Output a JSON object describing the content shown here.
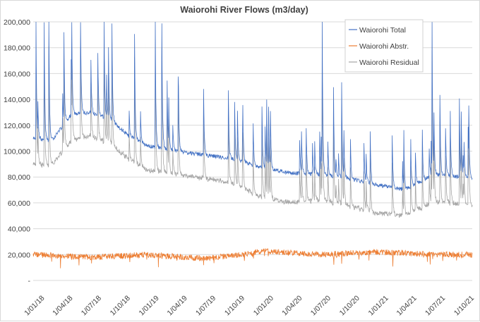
{
  "chart_data": {
    "type": "line",
    "title": "Waiorohi River Flows (m3/day)",
    "xlabel": "",
    "ylabel": "",
    "ylim": [
      0,
      200000
    ],
    "yticks": [
      "-",
      "20,000",
      "40,000",
      "60,000",
      "80,000",
      "100,000",
      "120,000",
      "140,000",
      "160,000",
      "180,000",
      "200,000"
    ],
    "ytick_values": [
      0,
      20000,
      40000,
      60000,
      80000,
      100000,
      120000,
      140000,
      160000,
      180000,
      200000
    ],
    "xticks": [
      "1/01/18",
      "1/04/18",
      "1/07/18",
      "1/10/18",
      "1/01/19",
      "1/04/19",
      "1/07/19",
      "1/10/19",
      "1/01/20",
      "1/04/20",
      "1/07/20",
      "1/10/20",
      "1/01/21",
      "1/04/21",
      "1/07/21",
      "1/10/21"
    ],
    "x_start": "2018-01-01",
    "x_end": "2021-10-31",
    "grid": "horizontal",
    "legend_position": "top-right",
    "series": [
      {
        "name": "Waiorohi Total",
        "color": "#4472C4",
        "baseflow_trend": [
          [
            "2018-01-01",
            110000
          ],
          [
            "2018-03-01",
            108000
          ],
          [
            "2018-05-01",
            128000
          ],
          [
            "2018-07-01",
            130000
          ],
          [
            "2018-09-01",
            125000
          ],
          [
            "2018-11-01",
            112000
          ],
          [
            "2019-01-01",
            104000
          ],
          [
            "2019-04-01",
            100000
          ],
          [
            "2019-07-01",
            97000
          ],
          [
            "2019-10-01",
            94000
          ],
          [
            "2020-01-01",
            87000
          ],
          [
            "2020-04-01",
            83000
          ],
          [
            "2020-07-01",
            82000
          ],
          [
            "2020-10-01",
            79000
          ],
          [
            "2021-01-01",
            74000
          ],
          [
            "2021-04-01",
            70000
          ],
          [
            "2021-07-01",
            82000
          ],
          [
            "2021-10-01",
            80000
          ],
          [
            "2021-10-31",
            79000
          ]
        ],
        "peaks": [
          [
            "2018-01-10",
            200000
          ],
          [
            "2018-02-05",
            200000
          ],
          [
            "2018-02-20",
            200000
          ],
          [
            "2018-06-01",
            200000
          ],
          [
            "2018-08-15",
            200000
          ],
          [
            "2018-11-20",
            190000
          ],
          [
            "2019-01-25",
            200000
          ],
          [
            "2019-02-15",
            200000
          ],
          [
            "2019-10-05",
            138000
          ],
          [
            "2020-01-10",
            120000
          ],
          [
            "2020-05-20",
            118000
          ],
          [
            "2020-07-10",
            200000
          ],
          [
            "2020-08-15",
            148000
          ],
          [
            "2020-09-10",
            152000
          ],
          [
            "2021-06-25",
            200000
          ],
          [
            "2021-07-20",
            143000
          ],
          [
            "2021-09-20",
            140000
          ],
          [
            "2021-10-20",
            135000
          ]
        ]
      },
      {
        "name": "Waiorohi Abstr.",
        "color": "#ED7D31",
        "trend": [
          [
            "2018-01-01",
            20000
          ],
          [
            "2018-07-01",
            18000
          ],
          [
            "2019-01-01",
            20000
          ],
          [
            "2019-07-01",
            17000
          ],
          [
            "2019-11-01",
            20000
          ],
          [
            "2020-01-01",
            23000
          ],
          [
            "2020-07-01",
            20000
          ],
          [
            "2021-01-01",
            22000
          ],
          [
            "2021-07-01",
            20000
          ],
          [
            "2021-10-31",
            20000
          ]
        ]
      },
      {
        "name": "Waiorohi Residual",
        "color": "#A5A5A5",
        "baseflow_trend": [
          [
            "2018-01-01",
            90000
          ],
          [
            "2018-03-01",
            89000
          ],
          [
            "2018-05-01",
            108000
          ],
          [
            "2018-07-01",
            112000
          ],
          [
            "2018-09-01",
            106000
          ],
          [
            "2018-11-01",
            94000
          ],
          [
            "2019-01-01",
            85000
          ],
          [
            "2019-04-01",
            82000
          ],
          [
            "2019-07-01",
            79000
          ],
          [
            "2019-10-01",
            75000
          ],
          [
            "2020-01-01",
            64000
          ],
          [
            "2020-04-01",
            60000
          ],
          [
            "2020-07-01",
            62000
          ],
          [
            "2020-10-01",
            58000
          ],
          [
            "2021-01-01",
            52000
          ],
          [
            "2021-04-01",
            50000
          ],
          [
            "2021-07-01",
            61000
          ],
          [
            "2021-10-01",
            59000
          ],
          [
            "2021-10-31",
            58000
          ]
        ]
      }
    ]
  }
}
